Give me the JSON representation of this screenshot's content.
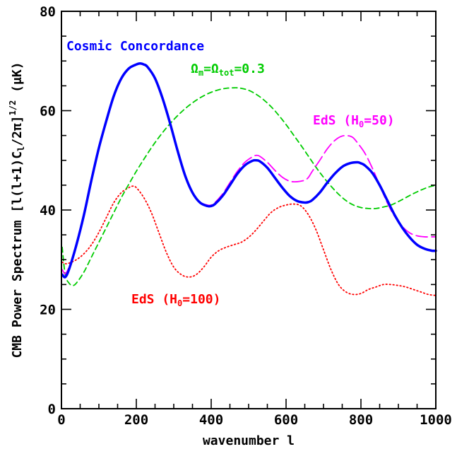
{
  "chart_data": {
    "type": "line",
    "title": "",
    "xlabel": "wavenumber l",
    "ylabel_parts": {
      "prefix": "CMB Power Spectrum [l(l+1)C",
      "sub": "l",
      "mid": "/2π]",
      "sup": "1/2",
      "suffix": " (μK)"
    },
    "xlim": [
      0,
      1000
    ],
    "ylim": [
      0,
      80
    ],
    "xticks": [
      0,
      200,
      400,
      600,
      800,
      1000
    ],
    "yticks": [
      0,
      20,
      40,
      60,
      80
    ],
    "grid": false,
    "series": [
      {
        "name": "Cosmic Concordance",
        "color": "#0000ff",
        "style": "solid",
        "x": [
          2,
          10,
          20,
          40,
          60,
          80,
          100,
          120,
          140,
          160,
          180,
          200,
          210,
          220,
          230,
          250,
          270,
          290,
          310,
          330,
          350,
          370,
          390,
          400,
          410,
          430,
          450,
          470,
          490,
          510,
          520,
          530,
          550,
          570,
          590,
          610,
          630,
          650,
          660,
          670,
          690,
          710,
          730,
          750,
          770,
          790,
          800,
          810,
          830,
          850,
          870,
          890,
          910,
          930,
          950,
          970,
          990,
          1000
        ],
        "y": [
          27,
          26.5,
          28,
          33,
          39,
          46,
          52.5,
          58,
          63,
          66.5,
          68.5,
          69.3,
          69.5,
          69.3,
          68.8,
          66.5,
          62.5,
          57.5,
          52,
          47,
          43.5,
          41.5,
          40.8,
          40.8,
          41.2,
          42.8,
          45,
          47.3,
          49,
          49.9,
          50,
          49.8,
          48.5,
          46.5,
          44.5,
          42.8,
          41.8,
          41.5,
          41.6,
          42,
          43.5,
          45.5,
          47.3,
          48.7,
          49.4,
          49.6,
          49.4,
          49,
          47.5,
          45,
          42,
          39,
          36.5,
          34.5,
          33,
          32.2,
          31.8,
          31.8
        ]
      },
      {
        "name": "EdS (H₀=50)",
        "color": "#ff00ff",
        "style": "long-dash",
        "x": [
          2,
          10,
          20,
          40,
          60,
          80,
          100,
          120,
          140,
          160,
          180,
          200,
          210,
          220,
          230,
          250,
          270,
          290,
          310,
          330,
          350,
          370,
          390,
          400,
          410,
          430,
          450,
          470,
          490,
          510,
          520,
          530,
          550,
          570,
          590,
          610,
          630,
          650,
          660,
          670,
          690,
          710,
          730,
          750,
          770,
          780,
          790,
          810,
          830,
          850,
          870,
          890,
          910,
          930,
          950,
          970,
          990,
          1000
        ],
        "y": [
          28,
          27.2,
          28.5,
          33,
          39,
          45.8,
          52.2,
          57.8,
          62.8,
          66.3,
          68.4,
          69.2,
          69.4,
          69.2,
          68.7,
          66.4,
          62.4,
          57.4,
          52,
          47,
          43.6,
          41.6,
          41,
          41,
          41.5,
          43.2,
          45.5,
          47.8,
          49.6,
          50.7,
          51,
          50.8,
          49.6,
          48,
          46.6,
          45.8,
          45.7,
          46,
          46.6,
          47.8,
          50,
          52.3,
          54,
          54.9,
          54.9,
          54.5,
          53.6,
          51.5,
          48.5,
          45,
          41.5,
          38.7,
          36.7,
          35.4,
          34.8,
          34.6,
          34.6,
          34.6
        ]
      },
      {
        "name": "Ωm=Ωtot=0.3",
        "color": "#00cc00",
        "style": "short-dash",
        "x": [
          2,
          10,
          20,
          30,
          40,
          60,
          80,
          100,
          120,
          140,
          160,
          180,
          200,
          220,
          240,
          260,
          280,
          300,
          320,
          340,
          360,
          380,
          400,
          420,
          440,
          460,
          470,
          480,
          500,
          520,
          540,
          560,
          580,
          600,
          620,
          640,
          660,
          680,
          700,
          720,
          740,
          760,
          780,
          800,
          820,
          840,
          860,
          880,
          900,
          920,
          940,
          960,
          980,
          1000
        ],
        "y": [
          32.5,
          27,
          25.3,
          24.8,
          25.3,
          27.5,
          30.5,
          33.5,
          36.5,
          39.5,
          42.5,
          45.2,
          47.8,
          50.2,
          52.5,
          54.6,
          56.5,
          58.2,
          59.7,
          61,
          62.1,
          63,
          63.7,
          64.2,
          64.5,
          64.6,
          64.6,
          64.5,
          64.1,
          63.3,
          62.2,
          60.8,
          59.1,
          57.2,
          55.1,
          53,
          50.8,
          48.6,
          46.6,
          44.8,
          43.2,
          41.9,
          41,
          40.5,
          40.3,
          40.3,
          40.6,
          41,
          41.7,
          42.5,
          43.3,
          44,
          44.6,
          45
        ]
      },
      {
        "name": "EdS (H₀=100)",
        "color": "#ff0000",
        "style": "dotted",
        "x": [
          2,
          10,
          20,
          40,
          60,
          80,
          100,
          120,
          140,
          160,
          180,
          190,
          200,
          220,
          240,
          260,
          280,
          300,
          320,
          340,
          360,
          380,
          400,
          420,
          440,
          460,
          480,
          500,
          520,
          540,
          560,
          580,
          600,
          620,
          640,
          660,
          680,
          700,
          720,
          740,
          760,
          780,
          800,
          820,
          840,
          860,
          880,
          900,
          920,
          940,
          960,
          980,
          1000
        ],
        "y": [
          29.5,
          29.2,
          29.3,
          30,
          31.2,
          33,
          35.5,
          38.5,
          41.5,
          43.5,
          44.5,
          44.8,
          44.5,
          42.5,
          39.5,
          35.5,
          31.5,
          28.5,
          27,
          26.5,
          27,
          28.5,
          30.5,
          31.8,
          32.5,
          33,
          33.5,
          34.5,
          36,
          37.8,
          39.5,
          40.5,
          41,
          41.2,
          40.8,
          39,
          36,
          32,
          28,
          25,
          23.5,
          23,
          23.2,
          24,
          24.5,
          25,
          25,
          24.8,
          24.5,
          24,
          23.5,
          23,
          22.8
        ]
      }
    ],
    "annotations": [
      {
        "text": "Cosmic Concordance",
        "color": "#0000ff"
      },
      {
        "text": "Ω",
        "sub1": "m",
        "mid": "=Ω",
        "sub2": "tot",
        "suffix": "=0.3",
        "color": "#00cc00"
      },
      {
        "text": "EdS (H",
        "sub": "0",
        "suffix": "=50)",
        "color": "#ff00ff"
      },
      {
        "text": "EdS (H",
        "sub": "0",
        "suffix": "=100)",
        "color": "#ff0000"
      }
    ]
  }
}
